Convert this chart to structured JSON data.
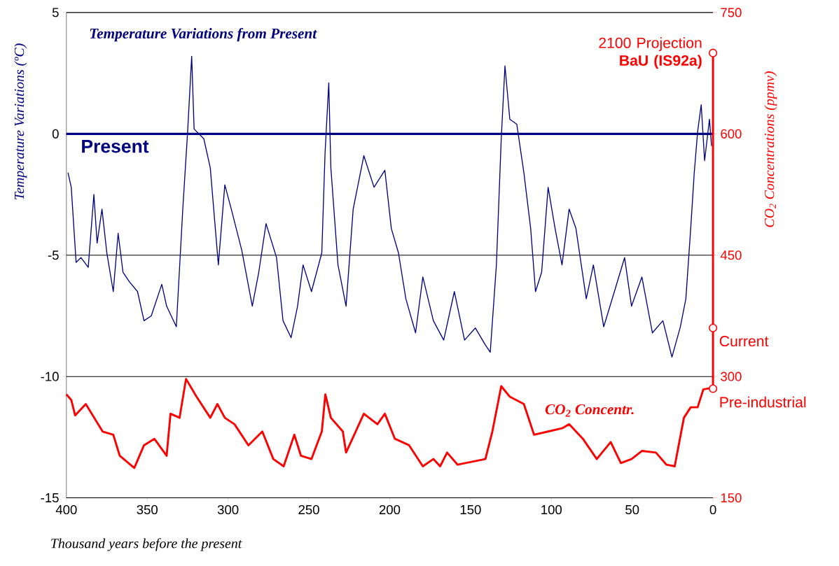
{
  "chart_data": {
    "type": "line",
    "title": "Temperature Variations from Present",
    "xlabel": "Thousand years before the present",
    "ylabel": "Temperature Variations (ºC)",
    "y2label": "CO$_{2}$ Concentrations (ppmv)",
    "xlim": [
      400,
      0
    ],
    "xticks": [
      400,
      350,
      300,
      250,
      200,
      150,
      100,
      50,
      0
    ],
    "ylim": [
      -15,
      5
    ],
    "yticks": [
      -15,
      -10,
      -5,
      0,
      5
    ],
    "y2lim": [
      150,
      750
    ],
    "y2ticks": [
      150,
      300,
      450,
      600,
      750
    ],
    "grid": "y",
    "marker": "none",
    "line_style": "solid",
    "ref_lines": [
      {
        "axis": "y",
        "value": 0,
        "label": "Present",
        "color": "#000080"
      }
    ],
    "annotations": [
      "2100 Projection **BaU (IS92a)**",
      "Current",
      "Pre-industrial"
    ],
    "series": [
      {
        "color": "#000080",
        "axis": "y",
        "x": [
          399,
          397,
          394,
          391,
          386.5,
          383,
          381,
          378,
          375,
          371,
          368,
          365,
          361,
          356,
          352,
          347.5,
          341,
          338,
          332,
          328,
          325,
          322.5,
          321,
          315,
          311,
          306,
          302,
          298,
          291.5,
          285,
          281,
          276.5,
          270,
          266,
          261,
          257,
          253.6,
          248.4,
          242,
          240,
          237.7,
          236.4,
          232,
          227,
          222.6,
          216,
          209.7,
          203,
          199,
          194.6,
          190,
          184,
          179.5,
          173,
          166.6,
          160,
          153.7,
          147,
          140.8,
          137.8,
          134,
          131,
          128.7,
          125.7,
          121.4,
          117,
          112.8,
          109.8,
          106,
          102,
          97.7,
          93.4,
          89,
          84.8,
          78.4,
          74,
          67.6,
          61,
          54.7,
          50.4,
          44,
          37.5,
          31,
          25.4,
          20.2,
          16.8,
          13.8,
          11.6,
          9.5,
          7.3,
          5.2,
          2.2,
          0.9
        ],
        "values": [
          -1.6,
          -2.2,
          -5.3,
          -5.1,
          -5.5,
          -2.5,
          -4.5,
          -3.1,
          -4.9,
          -6.5,
          -4.1,
          -5.7,
          -6.1,
          -6.5,
          -7.7,
          -7.5,
          -6.2,
          -7.1,
          -7.95,
          -3.1,
          0.1,
          3.2,
          0.2,
          -0.2,
          -1.4,
          -5.4,
          -2.1,
          -3.1,
          -4.8,
          -7.1,
          -5.7,
          -3.7,
          -5.1,
          -7.7,
          -8.4,
          -7.1,
          -5.4,
          -6.5,
          -4.9,
          -0.8,
          2.1,
          -1.4,
          -5.4,
          -7.1,
          -3.1,
          -0.9,
          -2.2,
          -1.5,
          -3.9,
          -4.9,
          -6.8,
          -8.2,
          -5.9,
          -7.7,
          -8.5,
          -6.5,
          -8.5,
          -8,
          -8.7,
          -9,
          -5.4,
          -0.2,
          2.8,
          0.6,
          0.4,
          -1.6,
          -3.9,
          -6.5,
          -5.7,
          -2.2,
          -3.9,
          -5.4,
          -3.1,
          -3.9,
          -6.8,
          -5.4,
          -7.95,
          -6.5,
          -5.1,
          -7.1,
          -5.9,
          -8.2,
          -7.7,
          -9.2,
          -7.95,
          -6.8,
          -3.9,
          -1.6,
          0.1,
          1.2,
          -1.1,
          0.6,
          -0.5
        ]
      },
      {
        "name": "CO$_{2}$ Concentr.",
        "color": "#ff0000",
        "axis": "y2",
        "x": [
          400,
          397,
          394.6,
          388,
          377.6,
          371,
          367,
          358,
          352,
          345.6,
          338,
          335.6,
          330,
          326,
          319.5,
          311,
          306.6,
          302,
          296,
          287.4,
          278.8,
          272,
          265.6,
          259,
          254.9,
          248.4,
          242,
          239.8,
          236.4,
          229,
          227,
          216,
          207.6,
          203,
          196.8,
          188,
          179.5,
          173,
          168.8,
          164.5,
          158,
          140.8,
          136.5,
          131,
          125.7,
          117,
          110.7,
          102,
          93.4,
          89,
          80.5,
          71.9,
          63.3,
          57,
          50.4,
          44,
          35.3,
          28.8,
          23.7,
          18,
          13.8,
          9.5,
          6,
          0.9
        ],
        "values": [
          278,
          271,
          252,
          266,
          232,
          228,
          202,
          187,
          215,
          223,
          202,
          254,
          249,
          297,
          275,
          249,
          266,
          249,
          241,
          215,
          232,
          198,
          189,
          228,
          202,
          198,
          232,
          278,
          249,
          232,
          206,
          254,
          241,
          254,
          223,
          215,
          189,
          198,
          189,
          206,
          191,
          198,
          232,
          288,
          275,
          266,
          228,
          232,
          236,
          241,
          223,
          198,
          219,
          193,
          198,
          208,
          206,
          191,
          189,
          249,
          262,
          262,
          284,
          286
        ]
      },
      {
        "type": "scatter",
        "color": "#ff0000",
        "axis": "y2",
        "marker": "circle",
        "x": [
          0,
          0,
          0
        ],
        "values": [
          700,
          360,
          285
        ]
      }
    ]
  }
}
